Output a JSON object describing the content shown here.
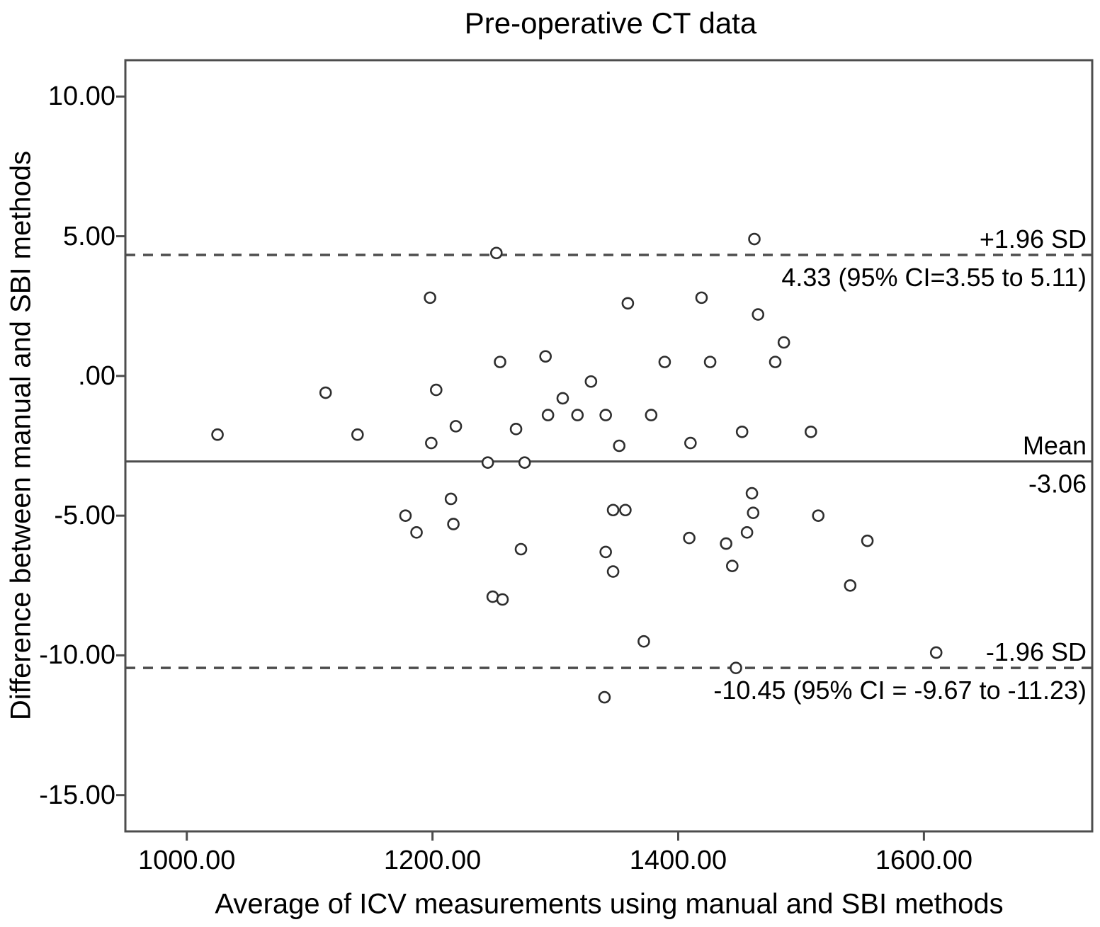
{
  "figure": {
    "title": "Pre-operative CT data"
  },
  "colors": {
    "background": "#ffffff",
    "axis": "#4d4d4d",
    "text": "#000000",
    "marker_stroke": "#2e2e2e",
    "marker_fill": "#ffffff",
    "reference_line": "#4d4d4d"
  },
  "chart_data": {
    "type": "scatter",
    "title": "Pre-operative CT data",
    "xlabel": "Average of ICV measurements using manual and SBI methods",
    "ylabel": "Difference between manual and SBI methods",
    "xlim": [
      950,
      1737
    ],
    "ylim": [
      -16.3,
      11.3
    ],
    "grid": false,
    "marker": "open-circle",
    "x_ticks": [
      {
        "value": 1000,
        "label": "1000.00"
      },
      {
        "value": 1200,
        "label": "1200.00"
      },
      {
        "value": 1400,
        "label": "1400.00"
      },
      {
        "value": 1600,
        "label": "1600.00"
      }
    ],
    "y_ticks": [
      {
        "value": 10,
        "label": "10.00"
      },
      {
        "value": 5,
        "label": "5.00"
      },
      {
        "value": 0,
        "label": ".00"
      },
      {
        "value": -5,
        "label": "-5.00"
      },
      {
        "value": -10,
        "label": "-10.00"
      },
      {
        "value": -15,
        "label": "-15.00"
      }
    ],
    "reference_lines": [
      {
        "value": 4.33,
        "style": "dashed",
        "label_above": "+1.96 SD",
        "label_below": "4.33 (95% CI=3.55 to 5.11)"
      },
      {
        "value": -3.06,
        "style": "solid",
        "label_above": "Mean",
        "label_below": "-3.06"
      },
      {
        "value": -10.45,
        "style": "dashed",
        "label_above": "-1.96 SD",
        "label_below": "-10.45 (95% CI = -9.67 to -11.23)"
      }
    ],
    "points": [
      [
        1025,
        -2.1
      ],
      [
        1113,
        -0.6
      ],
      [
        1139,
        -2.1
      ],
      [
        1178,
        -5.0
      ],
      [
        1187,
        -5.6
      ],
      [
        1198,
        2.8
      ],
      [
        1199,
        -2.4
      ],
      [
        1203,
        -0.5
      ],
      [
        1215,
        -4.4
      ],
      [
        1217,
        -5.3
      ],
      [
        1219,
        -1.8
      ],
      [
        1245,
        -3.1
      ],
      [
        1249,
        -7.9
      ],
      [
        1252,
        4.4
      ],
      [
        1255,
        0.5
      ],
      [
        1257,
        -8.0
      ],
      [
        1268,
        -1.9
      ],
      [
        1272,
        -6.2
      ],
      [
        1275,
        -3.1
      ],
      [
        1292,
        0.7
      ],
      [
        1294,
        -1.4
      ],
      [
        1306,
        -0.8
      ],
      [
        1318,
        -1.4
      ],
      [
        1329,
        -0.2
      ],
      [
        1340,
        -11.5
      ],
      [
        1341,
        -1.4
      ],
      [
        1341,
        -6.3
      ],
      [
        1347,
        -4.8
      ],
      [
        1347,
        -7.0
      ],
      [
        1352,
        -2.5
      ],
      [
        1357,
        -4.8
      ],
      [
        1359,
        2.6
      ],
      [
        1372,
        -9.5
      ],
      [
        1378,
        -1.4
      ],
      [
        1389,
        0.5
      ],
      [
        1409,
        -5.8
      ],
      [
        1410,
        -2.4
      ],
      [
        1419,
        2.8
      ],
      [
        1426,
        0.5
      ],
      [
        1439,
        -6.0
      ],
      [
        1444,
        -6.8
      ],
      [
        1447,
        -10.45
      ],
      [
        1452,
        -2.0
      ],
      [
        1456,
        -5.6
      ],
      [
        1460,
        -4.2
      ],
      [
        1461,
        -4.9
      ],
      [
        1462,
        4.9
      ],
      [
        1465,
        2.2
      ],
      [
        1479,
        0.5
      ],
      [
        1486,
        1.2
      ],
      [
        1508,
        -2.0
      ],
      [
        1514,
        -5.0
      ],
      [
        1540,
        -7.5
      ],
      [
        1554,
        -5.9
      ],
      [
        1610,
        -9.9
      ]
    ]
  }
}
